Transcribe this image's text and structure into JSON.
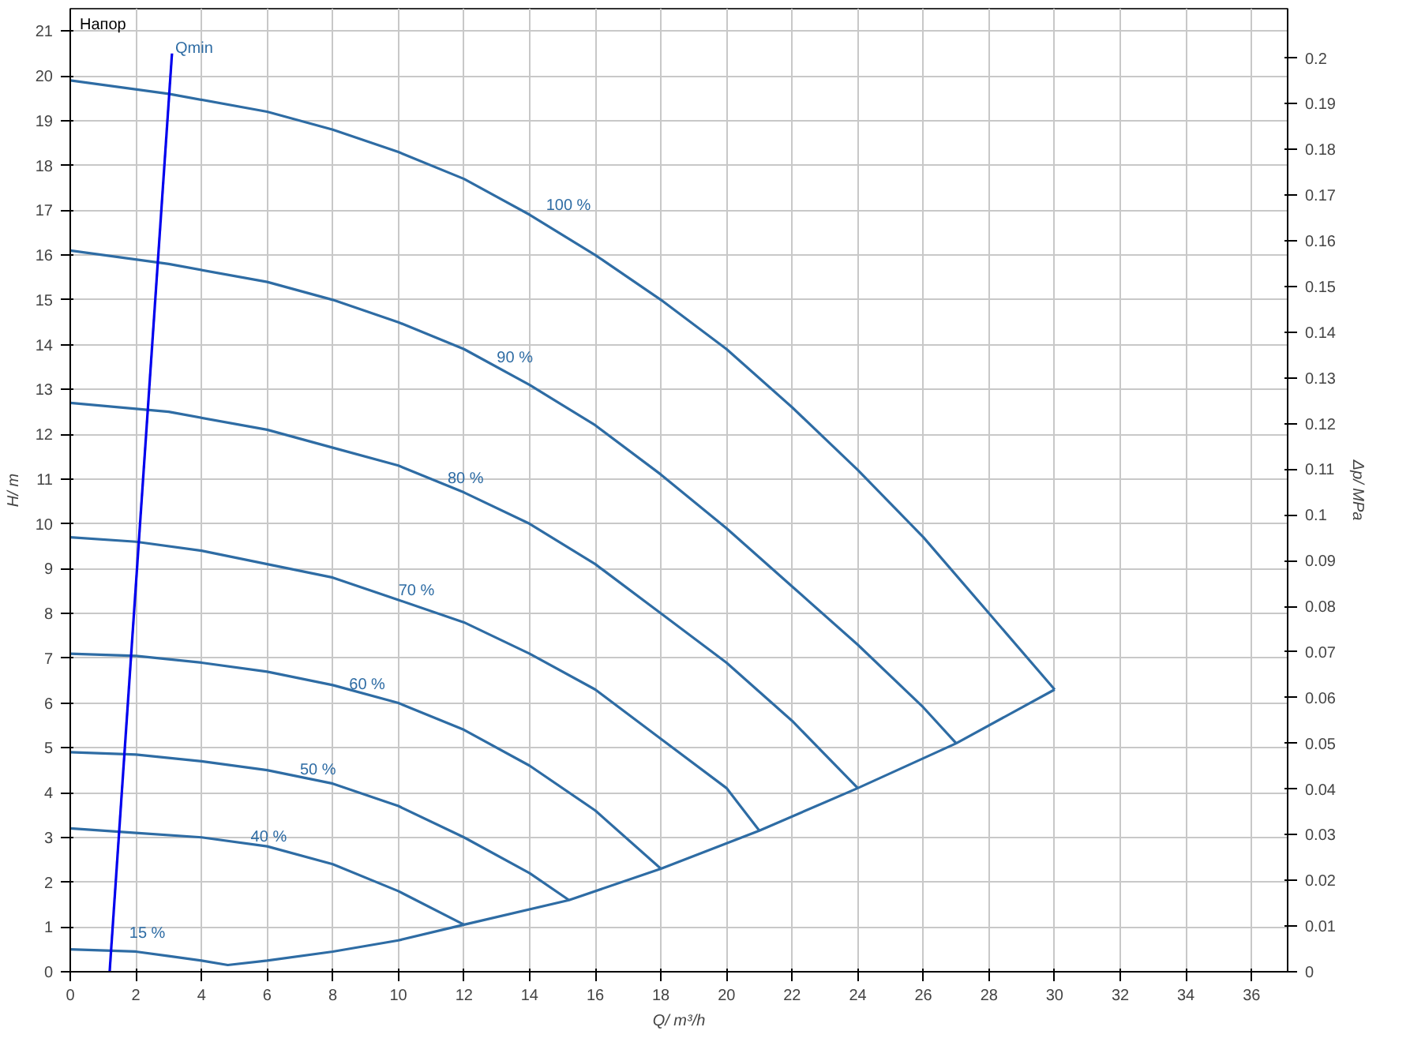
{
  "chart_data": {
    "type": "line",
    "title": "Напор",
    "xlabel": "Q/ m³/h",
    "ylabel": "H/ m",
    "y2label": "Δp/ MPa",
    "xlim": [
      0,
      37.1
    ],
    "ylim": [
      0,
      21.5
    ],
    "y2lim": [
      0,
      0.2108
    ],
    "xticks": [
      0,
      2,
      4,
      6,
      8,
      10,
      12,
      14,
      16,
      18,
      20,
      22,
      24,
      26,
      28,
      30,
      32,
      34,
      36
    ],
    "yticks": [
      0,
      1,
      2,
      3,
      4,
      5,
      6,
      7,
      8,
      9,
      10,
      11,
      12,
      13,
      14,
      15,
      16,
      17,
      18,
      19,
      20,
      21
    ],
    "y2ticks": [
      0,
      0.01,
      0.02,
      0.03,
      0.04,
      0.05,
      0.06,
      0.07,
      0.08,
      0.09,
      0.1,
      0.11,
      0.12,
      0.13,
      0.14,
      0.15,
      0.16,
      0.17,
      0.18,
      0.19,
      0.2
    ],
    "grid": true,
    "marker": "none",
    "line_style": "solid",
    "series": [
      {
        "color": "#2e6ca4",
        "x": [
          0,
          3,
          6,
          8,
          10,
          12,
          14,
          16,
          18,
          20,
          22,
          24,
          26,
          28,
          30
        ],
        "values": [
          19.9,
          19.6,
          19.2,
          18.8,
          18.3,
          17.7,
          16.9,
          16.0,
          15.0,
          13.9,
          12.6,
          11.2,
          9.7,
          8.0,
          6.3
        ]
      },
      {
        "color": "#2e6ca4",
        "x": [
          0,
          3,
          6,
          8,
          10,
          12,
          14,
          16,
          18,
          20,
          22,
          24,
          26,
          27
        ],
        "values": [
          16.1,
          15.8,
          15.4,
          15.0,
          14.5,
          13.9,
          13.1,
          12.2,
          11.1,
          9.9,
          8.6,
          7.3,
          5.9,
          5.1
        ]
      },
      {
        "color": "#2e6ca4",
        "x": [
          0,
          3,
          6,
          8,
          10,
          12,
          14,
          16,
          18,
          20,
          22,
          24
        ],
        "values": [
          12.7,
          12.5,
          12.1,
          11.7,
          11.3,
          10.7,
          10.0,
          9.1,
          8.0,
          6.9,
          5.6,
          4.1
        ]
      },
      {
        "color": "#2e6ca4",
        "x": [
          0,
          2,
          4,
          6,
          8,
          10,
          12,
          14,
          16,
          18,
          20,
          21
        ],
        "values": [
          9.7,
          9.6,
          9.4,
          9.1,
          8.8,
          8.3,
          7.8,
          7.1,
          6.3,
          5.2,
          4.1,
          3.15
        ]
      },
      {
        "color": "#2e6ca4",
        "x": [
          0,
          2,
          4,
          6,
          8,
          10,
          12,
          14,
          16,
          18
        ],
        "values": [
          7.1,
          7.05,
          6.9,
          6.7,
          6.4,
          6.0,
          5.4,
          4.6,
          3.6,
          2.3
        ]
      },
      {
        "color": "#2e6ca4",
        "x": [
          0,
          2,
          4,
          6,
          8,
          10,
          12,
          14,
          15.2
        ],
        "values": [
          4.9,
          4.85,
          4.7,
          4.5,
          4.2,
          3.7,
          3.0,
          2.2,
          1.6
        ]
      },
      {
        "color": "#2e6ca4",
        "x": [
          0,
          2,
          4,
          6,
          8,
          10,
          12
        ],
        "values": [
          3.2,
          3.1,
          3.0,
          2.8,
          2.4,
          1.8,
          1.05
        ]
      },
      {
        "color": "#2e6ca4",
        "x": [
          0,
          2,
          3,
          4,
          4.8,
          6,
          8,
          10,
          12,
          15.2,
          18,
          21,
          24,
          27,
          30
        ],
        "values": [
          0.5,
          0.45,
          0.35,
          0.25,
          0.15,
          0.25,
          0.45,
          0.7,
          1.05,
          1.6,
          2.3,
          3.15,
          4.1,
          5.1,
          6.3
        ]
      },
      {
        "color": "#0000ee",
        "x": [
          1.2,
          3.1
        ],
        "values": [
          0,
          20.5
        ]
      }
    ],
    "annotations": [
      {
        "text": "Qmin",
        "x": 3.2,
        "y": 20.4
      },
      {
        "text": "100 %",
        "x": 14.5,
        "y": 16.9
      },
      {
        "text": "90 %",
        "x": 13.0,
        "y": 13.5
      },
      {
        "text": "80 %",
        "x": 11.5,
        "y": 10.8
      },
      {
        "text": "70 %",
        "x": 10.0,
        "y": 8.3
      },
      {
        "text": "60 %",
        "x": 8.5,
        "y": 6.2
      },
      {
        "text": "50 %",
        "x": 7.0,
        "y": 4.3
      },
      {
        "text": "40 %",
        "x": 5.5,
        "y": 2.8
      },
      {
        "text": "15 %",
        "x": 1.8,
        "y": 0.65
      }
    ]
  }
}
